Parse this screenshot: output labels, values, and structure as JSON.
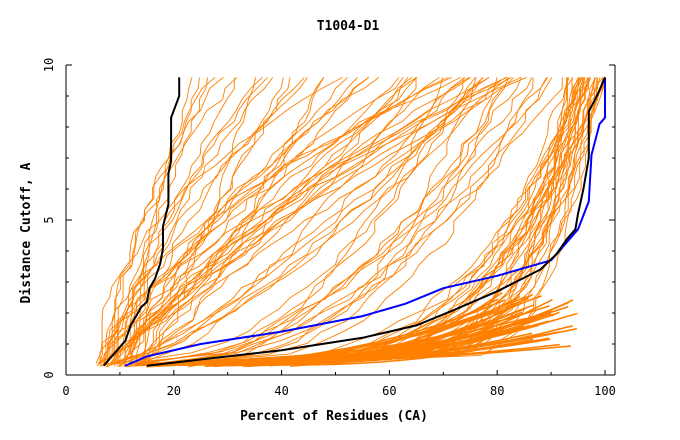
{
  "chart_data": {
    "type": "line",
    "title": "T1004-D1",
    "xlabel": "Percent of Residues (CA)",
    "ylabel": "Distance Cutoff, A",
    "xlim": [
      0,
      100
    ],
    "ylim": [
      0,
      10
    ],
    "x_ticks": [
      "0",
      "20",
      "40",
      "60",
      "80",
      "100"
    ],
    "y_ticks": [
      "0",
      "5",
      "10"
    ],
    "colors": {
      "background_series": "#ff8000",
      "highlight_blue": "#0000ff",
      "highlight_black": "#000000",
      "axis": "#000000"
    },
    "highlight_series": [
      {
        "name": "black-left",
        "color": "#000000",
        "x": [
          7,
          11,
          12,
          13,
          14,
          15,
          15.5,
          16.5,
          17.5,
          18,
          18,
          19,
          19,
          19.5,
          19.5,
          21,
          21
        ],
        "y": [
          0.3,
          1.1,
          1.6,
          1.9,
          2.2,
          2.35,
          2.8,
          3.1,
          3.6,
          4.1,
          4.8,
          5.5,
          6.5,
          6.9,
          8.3,
          9.0,
          9.6
        ]
      },
      {
        "name": "blue",
        "color": "#0000ff",
        "x": [
          11,
          15,
          25,
          40,
          55,
          63,
          70,
          80,
          90,
          93,
          95,
          97,
          97.5,
          99,
          100,
          100
        ],
        "y": [
          0.3,
          0.6,
          1.0,
          1.4,
          1.9,
          2.3,
          2.8,
          3.2,
          3.7,
          4.3,
          4.7,
          5.6,
          7.1,
          8.1,
          8.3,
          9.6
        ]
      },
      {
        "name": "black-right",
        "color": "#000000",
        "x": [
          15,
          25,
          40,
          55,
          65,
          72,
          80,
          88,
          91,
          93,
          94.5,
          95,
          96,
          97,
          97,
          98.5,
          100
        ],
        "y": [
          0.3,
          0.5,
          0.8,
          1.2,
          1.6,
          2.1,
          2.7,
          3.4,
          3.9,
          4.4,
          4.7,
          5.2,
          6.0,
          7.0,
          8.5,
          9.0,
          9.6
        ]
      }
    ],
    "background_series_count": 95
  }
}
